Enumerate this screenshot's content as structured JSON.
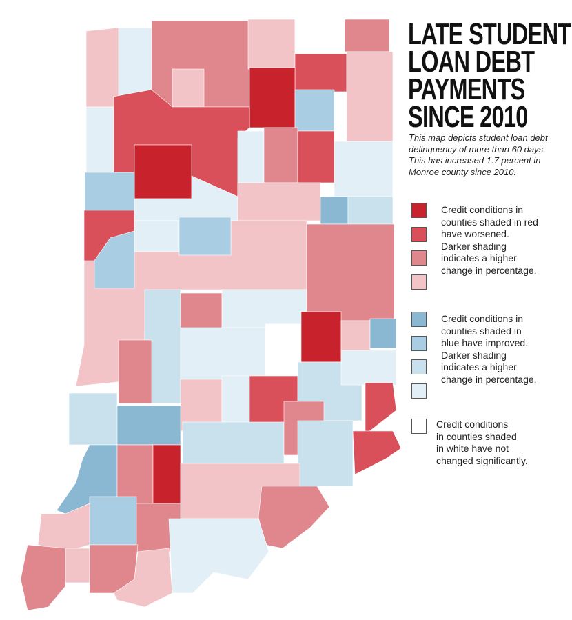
{
  "title": [
    "LATE STUDENT",
    "LOAN DEBT",
    "PAYMENTS",
    "SINCE 2010"
  ],
  "description": [
    "This map depicts student loan debt",
    "delinquency of more than 60 days.",
    "This has increased 1.7 percent in",
    "Monroe county since 2010."
  ],
  "legend": [
    {
      "colors": [
        "#c8232c",
        "#d9505a",
        "#e0868d",
        "#f2c4c7"
      ],
      "text": [
        "Credit conditions in",
        "counties shaded in red",
        "have worsened.",
        "Darker shading",
        "indicates a higher",
        "change in percentage."
      ]
    },
    {
      "colors": [
        "#8ab8d3",
        "#a9cde2",
        "#c9e0ed",
        "#e3eff6"
      ],
      "text": [
        "Credit conditions in",
        "counties shaded in",
        "blue have improved.",
        "Darker shading",
        "indicates a higher",
        "change in percentage."
      ]
    },
    {
      "colors": [
        "#ffffff"
      ],
      "text": [
        "Credit conditions",
        "in counties shaded",
        "in white have not",
        "changed significantly."
      ]
    }
  ]
}
